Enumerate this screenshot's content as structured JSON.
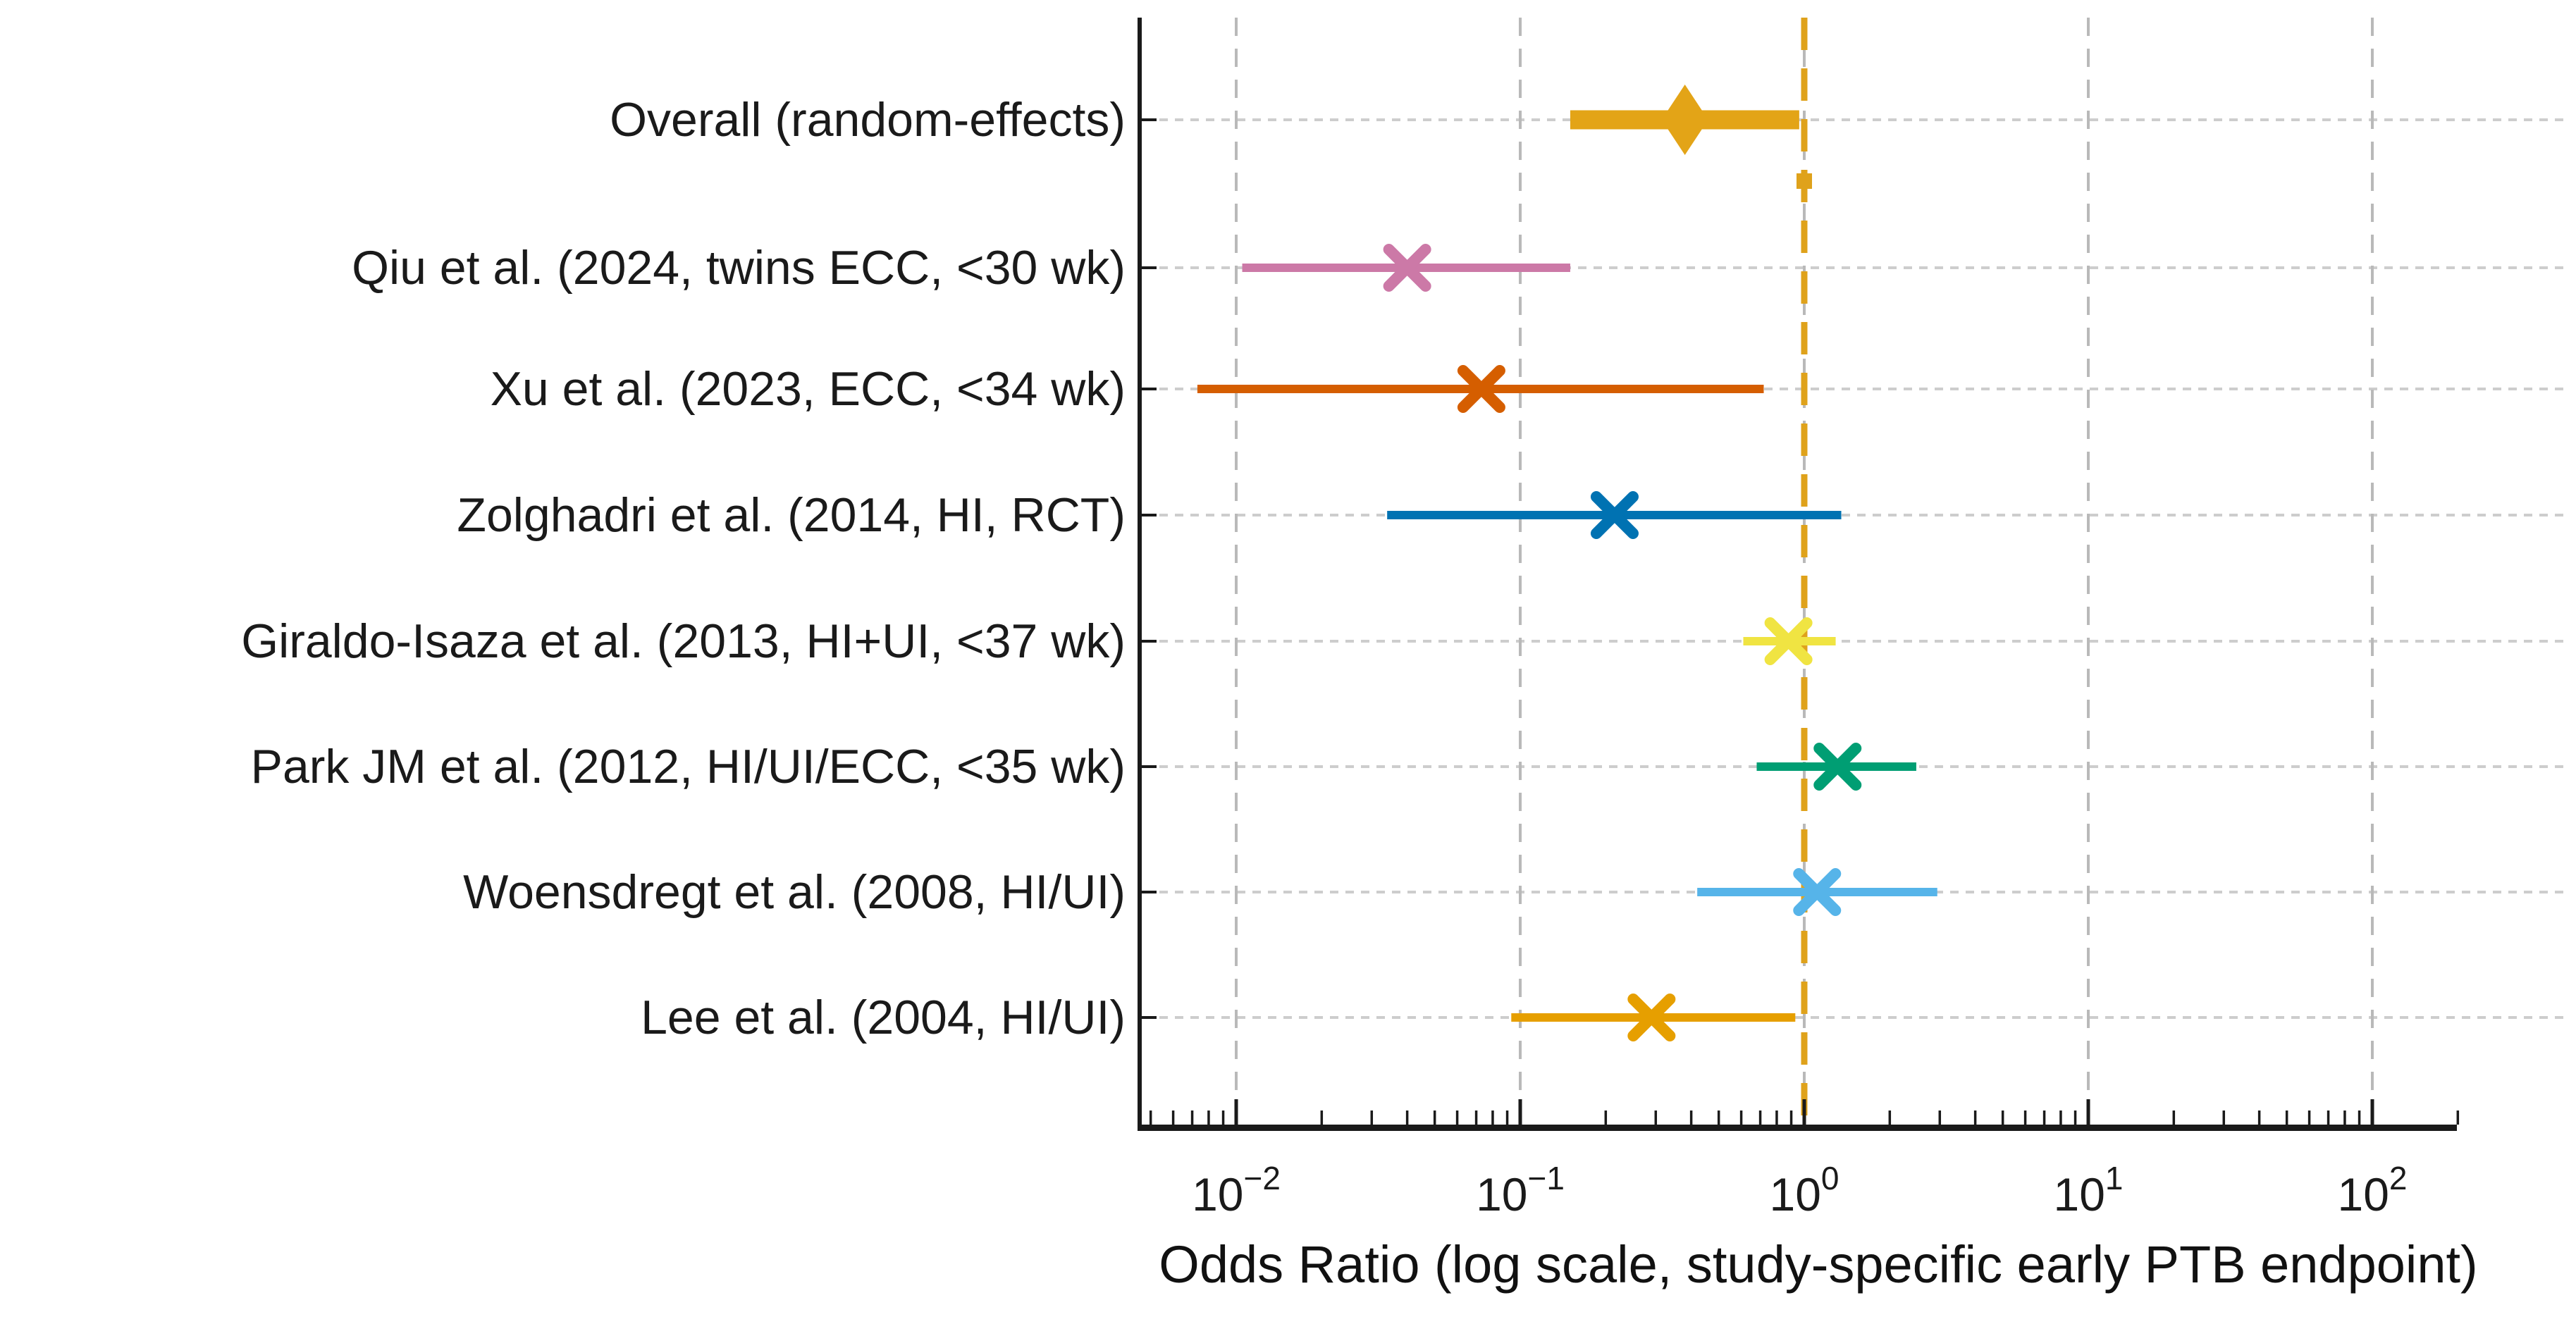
{
  "figure": {
    "background": "#ffffff",
    "text_color": "#1a1a1a"
  },
  "chart_data": {
    "type": "scatter",
    "variant": "forest-plot",
    "title": "",
    "xlabel": "Odds Ratio (log scale, study-specific early PTB endpoint)",
    "ylabel": "",
    "x_scale": "log",
    "xlim": [
      0.0046,
      200
    ],
    "x_tick_exponents": [
      -2,
      -1,
      0,
      1,
      2
    ],
    "x_tick_labels": [
      "10⁻²",
      "10⁻¹",
      "10⁰",
      "10¹",
      "10²"
    ],
    "grid": {
      "vertical_decade_gridlines": true,
      "horizontal_row_guides": true,
      "legend": "none"
    },
    "reference_line": {
      "x": 1,
      "color": "#DFA21B",
      "style": "dashed"
    },
    "summary_extra_marker": {
      "x": 1,
      "shape": "square",
      "color": "#DFA21B"
    },
    "rows": [
      {
        "label": "Overall (random-effects)",
        "or": 0.38,
        "ci_low": 0.15,
        "ci_high": 0.96,
        "color": "#E3A417",
        "marker": "diamond",
        "summary": true
      },
      {
        "label": "Qiu et al. (2024, twins ECC, <30 wk)",
        "or": 0.04,
        "ci_low": 0.0105,
        "ci_high": 0.15,
        "color": "#CC79A7",
        "marker": "x",
        "summary": false
      },
      {
        "label": "Xu et al. (2023, ECC, <34 wk)",
        "or": 0.073,
        "ci_low": 0.0073,
        "ci_high": 0.72,
        "color": "#D55E00",
        "marker": "x",
        "summary": false
      },
      {
        "label": "Zolghadri et al. (2014, HI, RCT)",
        "or": 0.215,
        "ci_low": 0.034,
        "ci_high": 1.35,
        "color": "#0072B2",
        "marker": "x",
        "summary": false
      },
      {
        "label": "Giraldo-Isaza et al. (2013, HI+UI, <37 wk)",
        "or": 0.88,
        "ci_low": 0.61,
        "ci_high": 1.29,
        "color": "#F0E442",
        "marker": "x",
        "summary": false
      },
      {
        "label": "Park JM et al. (2012, HI/UI/ECC, <35 wk)",
        "or": 1.31,
        "ci_low": 0.68,
        "ci_high": 2.48,
        "color": "#009E73",
        "marker": "x",
        "summary": false
      },
      {
        "label": "Woensdregt et al. (2008, HI/UI)",
        "or": 1.11,
        "ci_low": 0.42,
        "ci_high": 2.94,
        "color": "#56B4E9",
        "marker": "x",
        "summary": false
      },
      {
        "label": "Lee et al. (2004, HI/UI)",
        "or": 0.29,
        "ci_low": 0.093,
        "ci_high": 0.93,
        "color": "#E69F00",
        "marker": "x",
        "summary": false
      }
    ]
  }
}
